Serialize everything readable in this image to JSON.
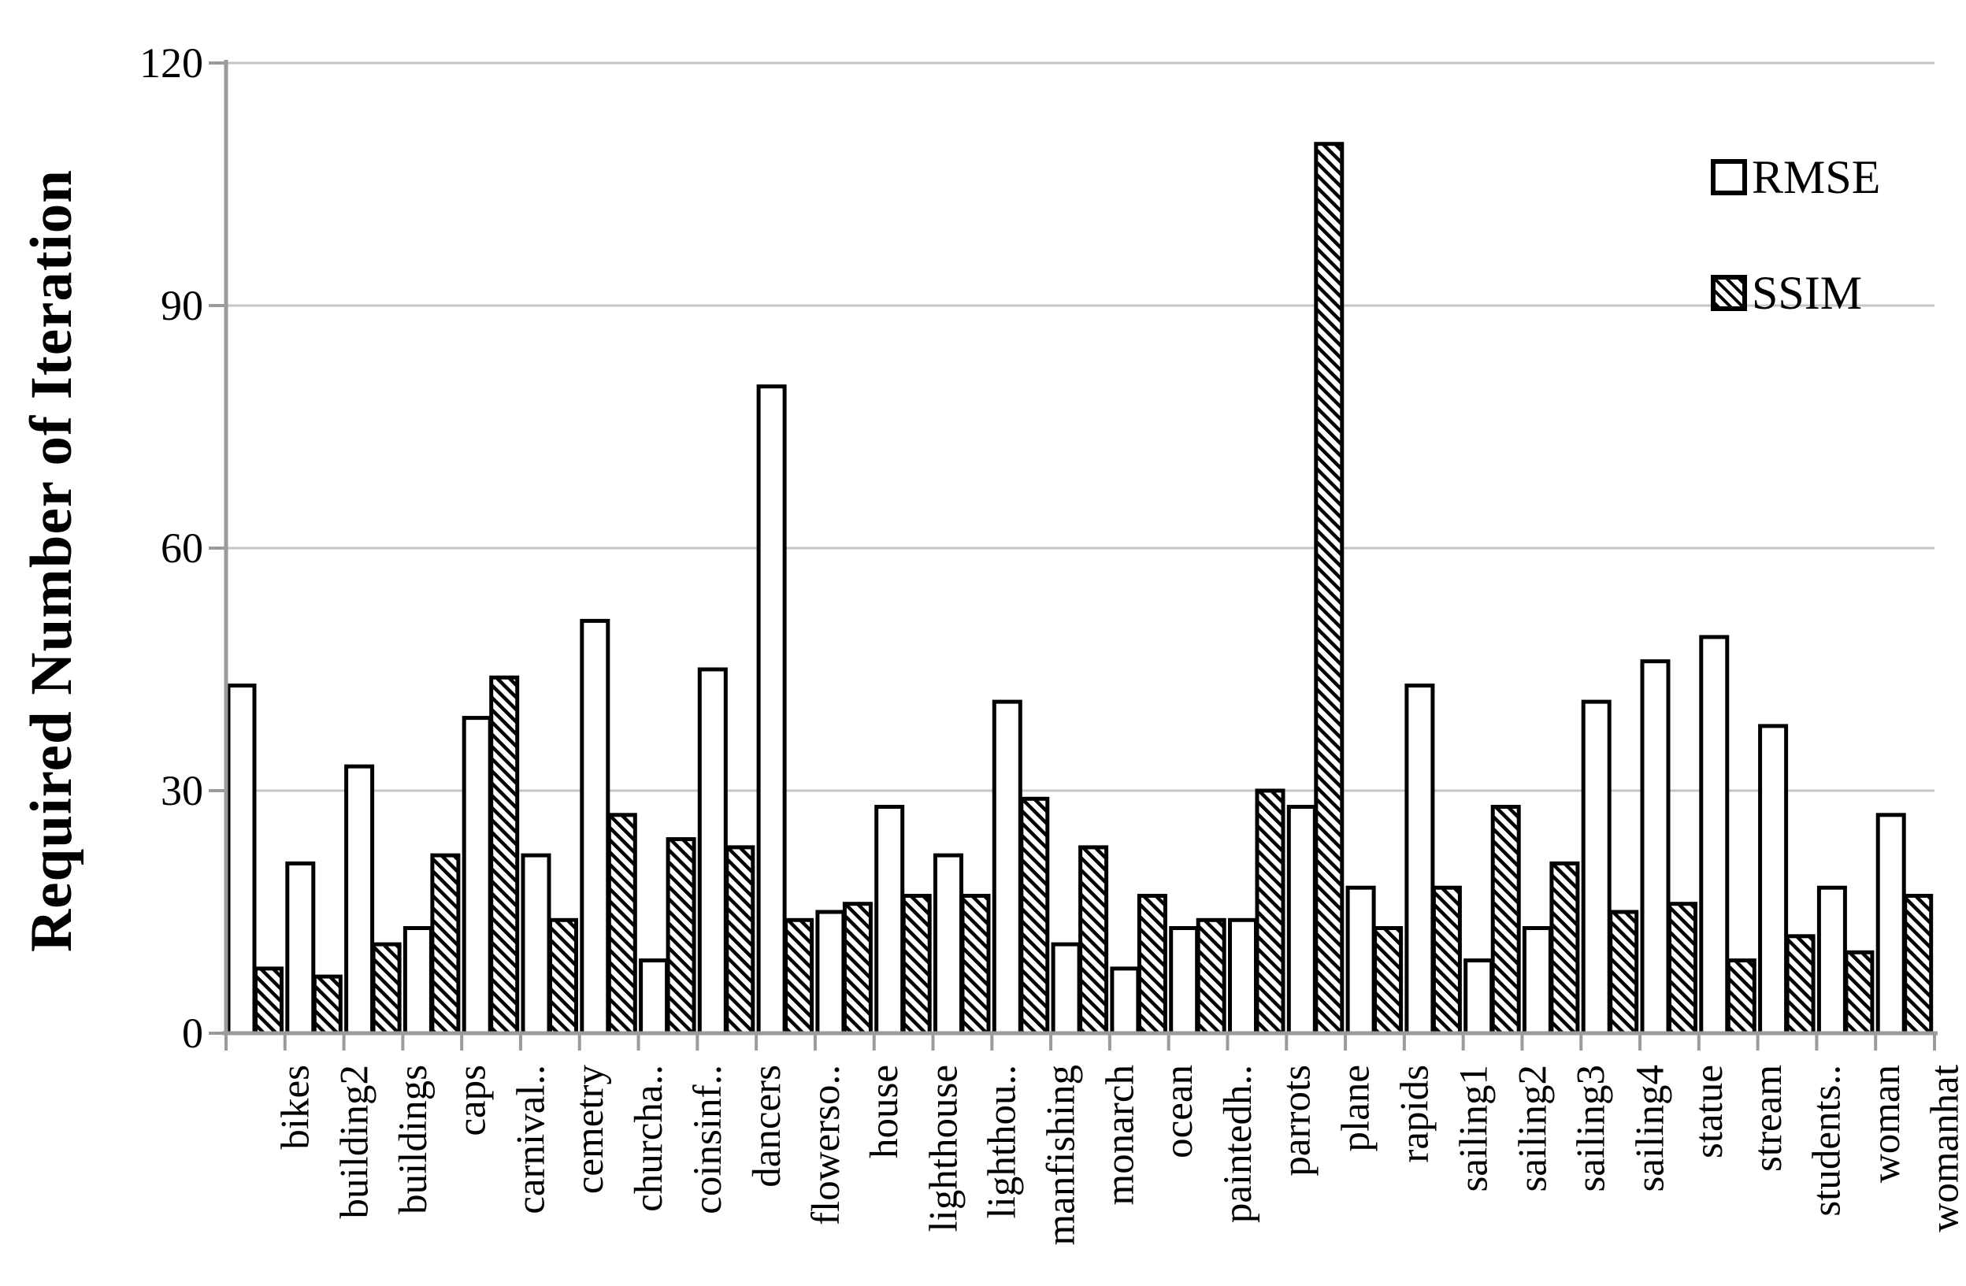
{
  "chart_data": {
    "type": "bar",
    "title": "",
    "xlabel": "",
    "ylabel": "Required Number of Iteration",
    "ylim": [
      0,
      120
    ],
    "yticks": [
      0,
      30,
      60,
      90,
      120
    ],
    "grid": true,
    "legend_position": "top-right-inside",
    "categories": [
      "bikes",
      "building2",
      "buildings",
      "caps",
      "carnival..",
      "cemetry",
      "churcha..",
      "coinsinf..",
      "dancers",
      "flowerso..",
      "house",
      "lighthouse",
      "lighthou..",
      "manfishing",
      "monarch",
      "ocean",
      "paintedh..",
      "parrots",
      "plane",
      "rapids",
      "sailing1",
      "sailing2",
      "sailing3",
      "sailing4",
      "statue",
      "stream",
      "students..",
      "woman",
      "womanhat"
    ],
    "series": [
      {
        "name": "RMSE",
        "fill": "white",
        "values": [
          43,
          21,
          33,
          13,
          39,
          22,
          51,
          9,
          45,
          80,
          15,
          28,
          22,
          41,
          11,
          8,
          13,
          14,
          28,
          18,
          43,
          9,
          13,
          41,
          46,
          49,
          38,
          18,
          27
        ]
      },
      {
        "name": "SSIM",
        "fill": "diagonal-hatch",
        "values": [
          8,
          7,
          11,
          22,
          44,
          14,
          27,
          24,
          23,
          14,
          16,
          17,
          17,
          29,
          23,
          17,
          14,
          30,
          110,
          13,
          18,
          28,
          21,
          15,
          16,
          9,
          12,
          10,
          17
        ]
      }
    ],
    "colors": {
      "bar_stroke": "#000000",
      "gridline": "#c6c6c6",
      "axis": "#9b9b9b",
      "text": "#000000",
      "background": "#ffffff"
    }
  }
}
